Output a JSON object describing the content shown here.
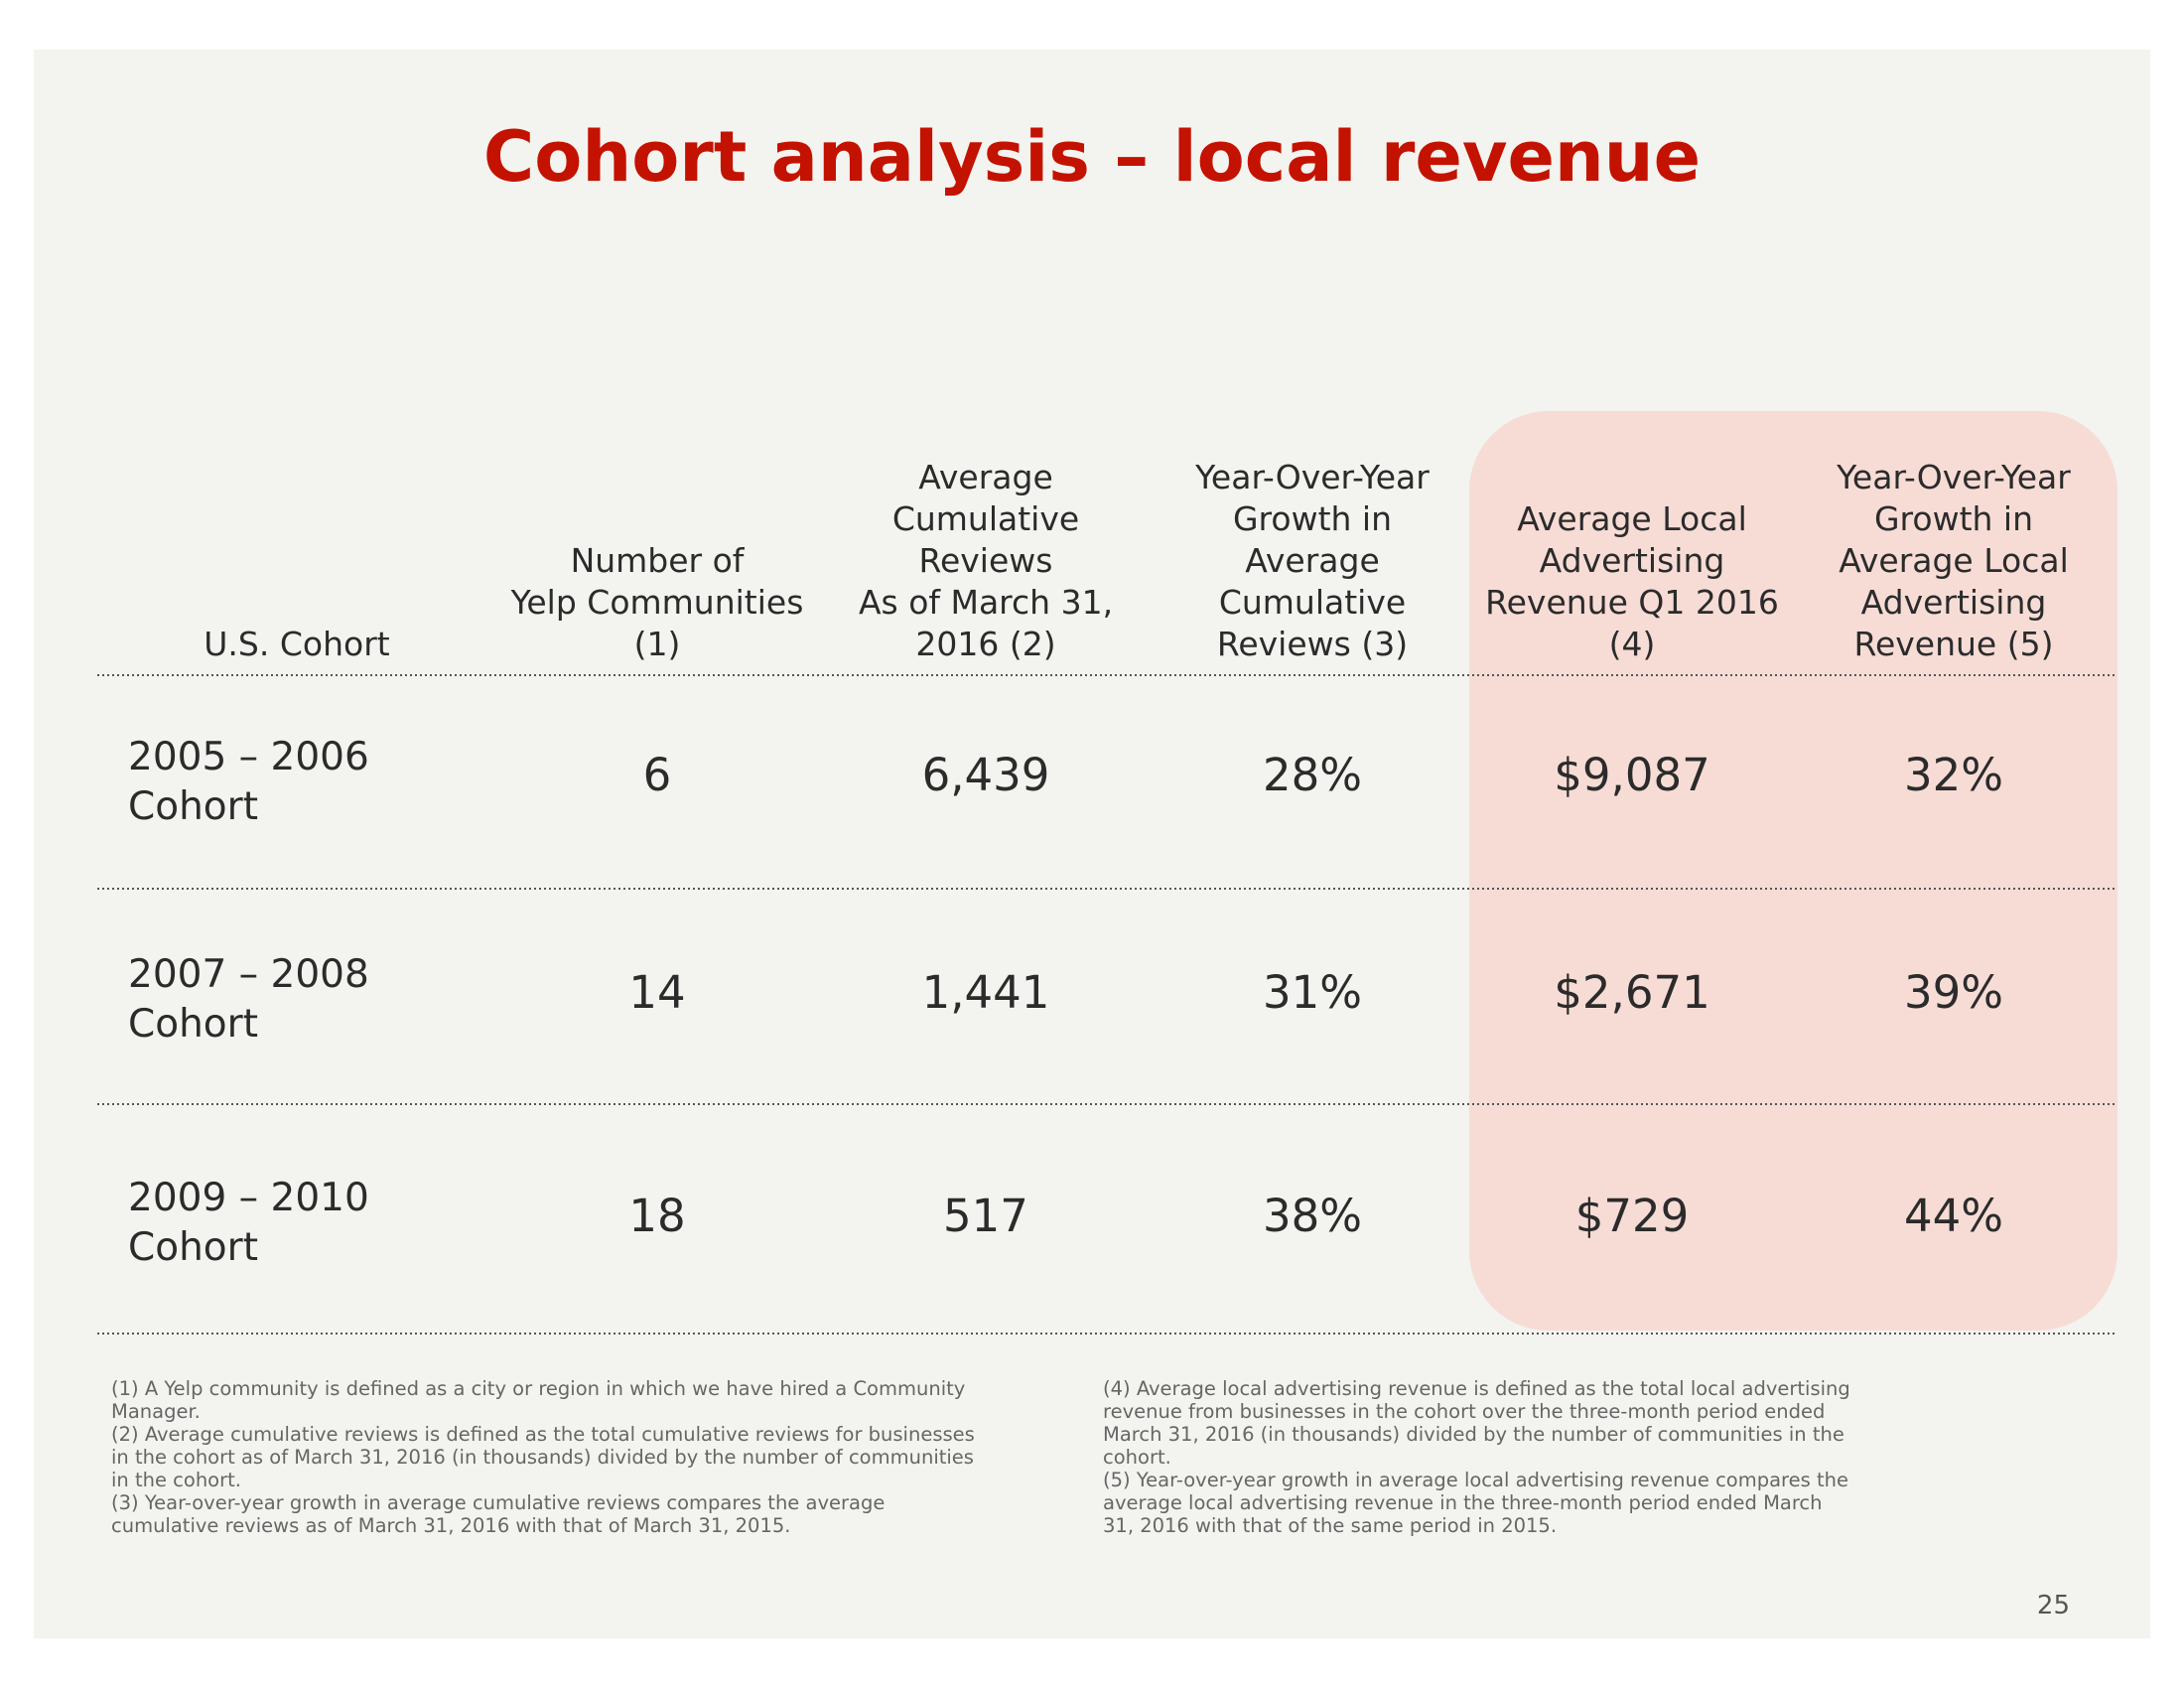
{
  "title": "Cohort analysis – local revenue",
  "table": {
    "headers": [
      [
        "U.S. Cohort"
      ],
      [
        "Number of",
        "Yelp Communities",
        "(1)"
      ],
      [
        "Average",
        "Cumulative",
        "Reviews",
        "As of March 31,",
        "2016 (2)"
      ],
      [
        "Year-Over-Year",
        "Growth in",
        "Average",
        "Cumulative",
        "Reviews (3)"
      ],
      [
        "Average Local",
        "Advertising",
        "Revenue Q1 2016",
        "(4)"
      ],
      [
        "Year-Over-Year",
        "Growth in",
        "Average Local",
        "Advertising",
        "Revenue (5)"
      ]
    ],
    "rows": [
      {
        "label": [
          "2005 – 2006",
          "Cohort"
        ],
        "cells": [
          "6",
          "6,439",
          "28%",
          "$9,087",
          "32%"
        ]
      },
      {
        "label": [
          "2007 – 2008",
          "Cohort"
        ],
        "cells": [
          "14",
          "1,441",
          "31%",
          "$2,671",
          "39%"
        ]
      },
      {
        "label": [
          "2009 – 2010",
          "Cohort"
        ],
        "cells": [
          "18",
          "517",
          "38%",
          "$729",
          "44%"
        ]
      }
    ]
  },
  "footnotes": {
    "left": [
      "(1) A Yelp community is defined as a city or region in which we have hired a Community",
      "Manager.",
      "(2) Average cumulative reviews is defined as the total cumulative reviews for businesses",
      "in the cohort as of March 31, 2016 (in thousands) divided by the number of communities",
      "in the cohort.",
      "(3) Year-over-year growth in average cumulative reviews compares the average",
      "cumulative reviews as of March 31, 2016 with that of March 31, 2015."
    ],
    "right": [
      "(4) Average local advertising revenue is defined as the total local advertising",
      "revenue from businesses in the cohort over the three-month period ended",
      "March 31, 2016 (in thousands) divided by the number of communities in the",
      "cohort.",
      "(5) Year-over-year growth in average local advertising revenue compares the",
      "average local advertising revenue in the three-month period ended March",
      "31, 2016 with that of the same period in 2015."
    ]
  },
  "page_number": "25"
}
